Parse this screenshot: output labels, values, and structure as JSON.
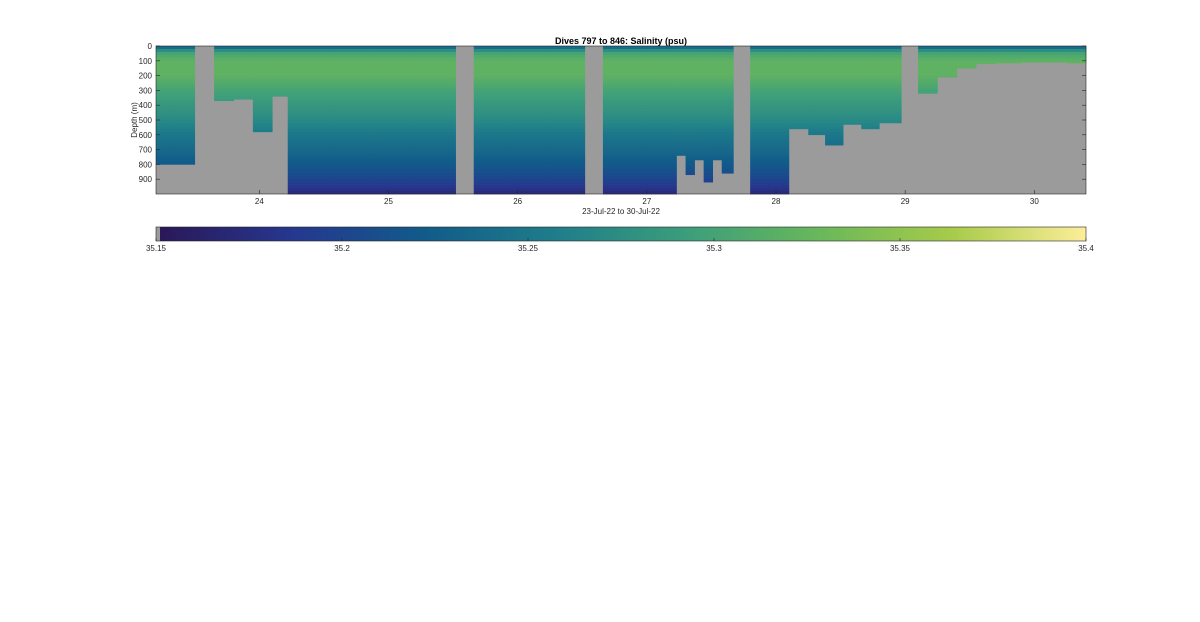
{
  "chart_data": [
    {
      "type": "heatmap",
      "title": "Dives 797 to 846: Salinity (psu)",
      "xlabel": "23-Jul-22 to 30-Jul-22",
      "ylabel": "Depth (m)",
      "xlim": [
        23.2,
        30.4
      ],
      "ylim": [
        0,
        1000
      ],
      "y_reversed": true,
      "x_ticks": [
        24,
        25,
        26,
        27,
        28,
        29,
        30
      ],
      "x_tick_labels": [
        "24",
        "25",
        "26",
        "27",
        "28",
        "29",
        "30"
      ],
      "y_ticks": [
        0,
        100,
        200,
        300,
        400,
        500,
        600,
        700,
        800,
        900
      ],
      "y_tick_labels": [
        "0",
        "100",
        "200",
        "300",
        "400",
        "500",
        "600",
        "700",
        "800",
        "900"
      ],
      "nodata_color": "#9b9b9b",
      "gaps": [
        {
          "start": 23.5,
          "end": 23.65
        },
        {
          "start": 25.52,
          "end": 25.66
        },
        {
          "start": 26.52,
          "end": 26.66
        },
        {
          "start": 27.67,
          "end": 27.8
        },
        {
          "start": 28.97,
          "end": 29.1
        }
      ],
      "profiles": [
        {
          "start": 23.2,
          "end": 23.35,
          "max_depth": 800
        },
        {
          "start": 23.35,
          "end": 23.5,
          "max_depth": 800
        },
        {
          "start": 23.65,
          "end": 23.8,
          "max_depth": 370
        },
        {
          "start": 23.8,
          "end": 23.95,
          "max_depth": 360
        },
        {
          "start": 23.95,
          "end": 24.1,
          "max_depth": 580
        },
        {
          "start": 24.1,
          "end": 24.22,
          "max_depth": 340
        },
        {
          "start": 24.22,
          "end": 24.55,
          "max_depth": 1000
        },
        {
          "start": 24.55,
          "end": 24.9,
          "max_depth": 1000
        },
        {
          "start": 24.9,
          "end": 25.2,
          "max_depth": 1000
        },
        {
          "start": 25.2,
          "end": 25.52,
          "max_depth": 1000
        },
        {
          "start": 25.66,
          "end": 25.95,
          "max_depth": 1000
        },
        {
          "start": 25.95,
          "end": 26.25,
          "max_depth": 1000
        },
        {
          "start": 26.25,
          "end": 26.52,
          "max_depth": 1000
        },
        {
          "start": 26.66,
          "end": 27.0,
          "max_depth": 1000
        },
        {
          "start": 27.0,
          "end": 27.23,
          "max_depth": 1000
        },
        {
          "start": 27.23,
          "end": 27.3,
          "max_depth": 740
        },
        {
          "start": 27.3,
          "end": 27.37,
          "max_depth": 870
        },
        {
          "start": 27.37,
          "end": 27.44,
          "max_depth": 770
        },
        {
          "start": 27.44,
          "end": 27.51,
          "max_depth": 920
        },
        {
          "start": 27.51,
          "end": 27.58,
          "max_depth": 770
        },
        {
          "start": 27.58,
          "end": 27.67,
          "max_depth": 860
        },
        {
          "start": 27.8,
          "end": 28.1,
          "max_depth": 1000
        },
        {
          "start": 28.1,
          "end": 28.25,
          "max_depth": 560
        },
        {
          "start": 28.25,
          "end": 28.38,
          "max_depth": 600
        },
        {
          "start": 28.38,
          "end": 28.52,
          "max_depth": 670
        },
        {
          "start": 28.52,
          "end": 28.66,
          "max_depth": 530
        },
        {
          "start": 28.66,
          "end": 28.8,
          "max_depth": 560
        },
        {
          "start": 28.8,
          "end": 28.97,
          "max_depth": 520
        },
        {
          "start": 29.1,
          "end": 29.25,
          "max_depth": 320
        },
        {
          "start": 29.25,
          "end": 29.4,
          "max_depth": 210
        },
        {
          "start": 29.4,
          "end": 29.55,
          "max_depth": 150
        },
        {
          "start": 29.55,
          "end": 29.7,
          "max_depth": 120
        },
        {
          "start": 29.7,
          "end": 29.9,
          "max_depth": 115
        },
        {
          "start": 29.9,
          "end": 30.1,
          "max_depth": 110
        },
        {
          "start": 30.1,
          "end": 30.25,
          "max_depth": 110
        },
        {
          "start": 30.25,
          "end": 30.4,
          "max_depth": 115
        }
      ],
      "salinity_profile": {
        "depths": [
          0,
          20,
          50,
          100,
          200,
          300,
          400,
          500,
          600,
          700,
          800,
          900,
          950,
          1000
        ],
        "values": [
          35.22,
          35.26,
          35.3,
          35.32,
          35.32,
          35.3,
          35.285,
          35.27,
          35.25,
          35.235,
          35.22,
          35.2,
          35.185,
          35.17
        ]
      },
      "colorbar": {
        "clim": [
          35.15,
          35.4
        ],
        "ticks": [
          35.15,
          35.2,
          35.25,
          35.3,
          35.35,
          35.4
        ],
        "tick_labels": [
          "35.15",
          "35.2",
          "35.25",
          "35.3",
          "35.35",
          "35.4"
        ],
        "colormap": [
          "#2a1858",
          "#26378f",
          "#115b8a",
          "#1f7e8a",
          "#3c9e7b",
          "#6ab85a",
          "#a8cb4a",
          "#fdee9a"
        ]
      }
    }
  ]
}
